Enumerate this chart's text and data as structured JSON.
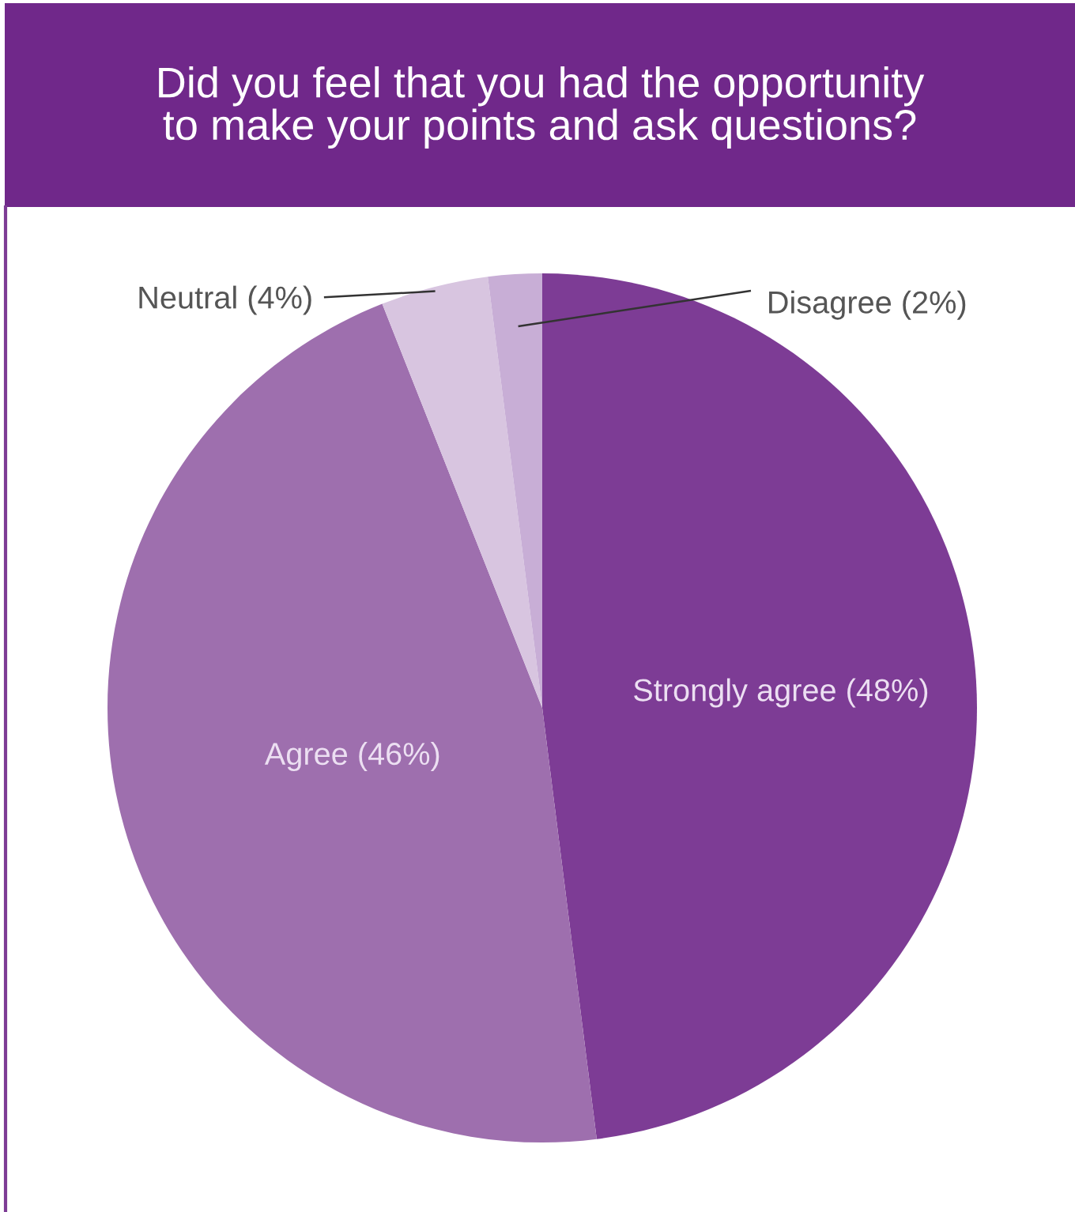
{
  "chart_data": {
    "type": "pie",
    "title": "Did you feel that you had the opportunity\nto make your points and ask questions?",
    "categories": [
      "Strongly agree (48%)",
      "Agree (46%)",
      "Neutral (4%)",
      "Disagree (2%)"
    ],
    "values": [
      48,
      46,
      4,
      2
    ],
    "colors": [
      "#7d3c95",
      "#9e6fae",
      "#d8c5e0",
      "#c8aed6"
    ]
  }
}
